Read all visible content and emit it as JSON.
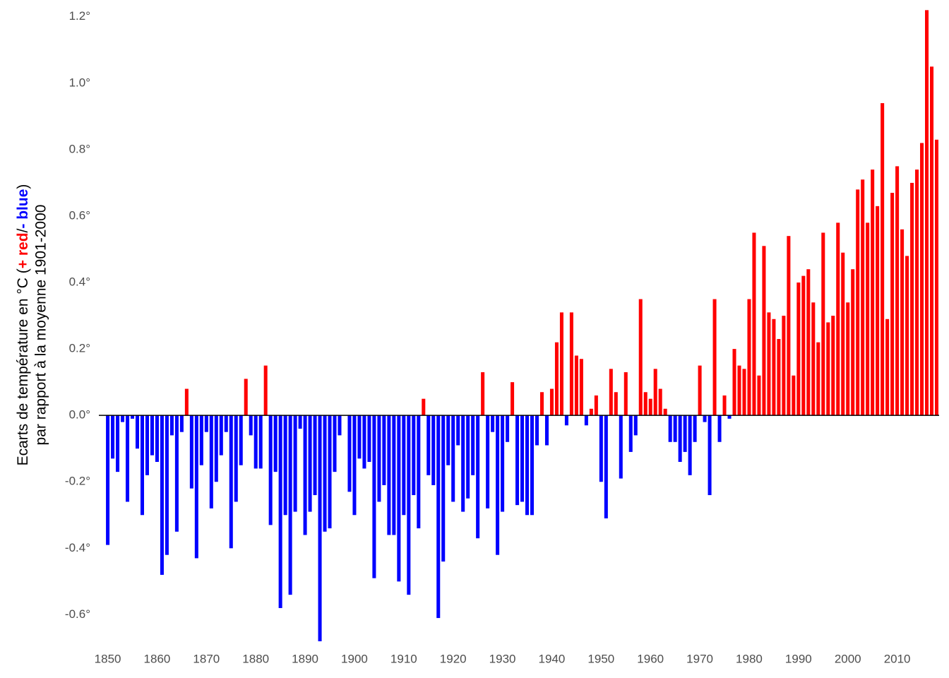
{
  "chart_data": {
    "type": "bar",
    "ylabel_line1": [
      "Ecarts de température en °C (",
      "+ red",
      "/",
      "- blue",
      ")"
    ],
    "ylabel_line2": "par rapport à la moyenne 1901-2000",
    "positive_color": "#ff0000",
    "negative_color": "#0000ff",
    "grid": true,
    "x": [
      1850,
      1851,
      1852,
      1853,
      1854,
      1855,
      1856,
      1857,
      1858,
      1859,
      1860,
      1861,
      1862,
      1863,
      1864,
      1865,
      1866,
      1867,
      1868,
      1869,
      1870,
      1871,
      1872,
      1873,
      1874,
      1875,
      1876,
      1877,
      1878,
      1879,
      1880,
      1881,
      1882,
      1883,
      1884,
      1885,
      1886,
      1887,
      1888,
      1889,
      1890,
      1891,
      1892,
      1893,
      1894,
      1895,
      1896,
      1897,
      1898,
      1899,
      1900,
      1901,
      1902,
      1903,
      1904,
      1905,
      1906,
      1907,
      1908,
      1909,
      1910,
      1911,
      1912,
      1913,
      1914,
      1915,
      1916,
      1917,
      1918,
      1919,
      1920,
      1921,
      1922,
      1923,
      1924,
      1925,
      1926,
      1927,
      1928,
      1929,
      1930,
      1931,
      1932,
      1933,
      1934,
      1935,
      1936,
      1937,
      1938,
      1939,
      1940,
      1941,
      1942,
      1943,
      1944,
      1945,
      1946,
      1947,
      1948,
      1949,
      1950,
      1951,
      1952,
      1953,
      1954,
      1955,
      1956,
      1957,
      1958,
      1959,
      1960,
      1961,
      1962,
      1963,
      1964,
      1965,
      1966,
      1967,
      1968,
      1969,
      1970,
      1971,
      1972,
      1973,
      1974,
      1975,
      1976,
      1977,
      1978,
      1979,
      1980,
      1981,
      1982,
      1983,
      1984,
      1985,
      1986,
      1987,
      1988,
      1989,
      1990,
      1991,
      1992,
      1993,
      1994,
      1995,
      1996,
      1997,
      1998,
      1999,
      2000,
      2001,
      2002,
      2003,
      2004,
      2005,
      2006,
      2007,
      2008,
      2009,
      2010,
      2011,
      2012,
      2013,
      2014,
      2015,
      2016,
      2017,
      2018
    ],
    "values": [
      -0.39,
      -0.13,
      -0.17,
      -0.02,
      -0.26,
      -0.01,
      -0.1,
      -0.3,
      -0.18,
      -0.12,
      -0.14,
      -0.48,
      -0.42,
      -0.06,
      -0.35,
      -0.05,
      0.08,
      -0.22,
      -0.43,
      -0.15,
      -0.05,
      -0.28,
      -0.2,
      -0.12,
      -0.05,
      -0.4,
      -0.26,
      -0.15,
      0.11,
      -0.06,
      -0.16,
      -0.16,
      0.15,
      -0.33,
      -0.17,
      -0.58,
      -0.3,
      -0.54,
      -0.29,
      -0.04,
      -0.36,
      -0.29,
      -0.24,
      -0.68,
      -0.35,
      -0.34,
      -0.17,
      -0.06,
      0,
      -0.23,
      -0.3,
      -0.13,
      -0.16,
      -0.14,
      -0.49,
      -0.26,
      -0.21,
      -0.36,
      -0.36,
      -0.5,
      -0.3,
      -0.54,
      -0.24,
      -0.34,
      0.05,
      -0.18,
      -0.21,
      -0.61,
      -0.44,
      -0.15,
      -0.26,
      -0.09,
      -0.29,
      -0.25,
      -0.18,
      -0.37,
      0.13,
      -0.28,
      -0.05,
      -0.42,
      -0.29,
      -0.08,
      0.1,
      -0.27,
      -0.26,
      -0.3,
      -0.3,
      -0.09,
      0.07,
      -0.09,
      0.08,
      0.22,
      0.31,
      -0.03,
      0.31,
      0.18,
      0.17,
      -0.03,
      0.02,
      0.06,
      -0.2,
      -0.31,
      0.14,
      0.07,
      -0.19,
      0.13,
      -0.11,
      -0.06,
      0.35,
      0.07,
      0.05,
      0.14,
      0.08,
      0.02,
      -0.08,
      -0.08,
      -0.14,
      -0.11,
      -0.18,
      -0.08,
      0.15,
      -0.02,
      -0.24,
      0.35,
      -0.08,
      0.06,
      -0.01,
      0.2,
      0.15,
      0.14,
      0.35,
      0.55,
      0.12,
      0.51,
      0.31,
      0.29,
      0.23,
      0.3,
      0.54,
      0.12,
      0.4,
      0.42,
      0.44,
      0.34,
      0.22,
      0.55,
      0.28,
      0.3,
      0.58,
      0.49,
      0.34,
      0.44,
      0.68,
      0.71,
      0.58,
      0.74,
      0.63,
      0.94,
      0.29,
      0.67,
      0.75,
      0.56,
      0.48,
      0.7,
      0.74,
      0.82,
      1.22,
      1.05,
      0.83
    ],
    "xlim": [
      1848.2,
      2018.5
    ],
    "xticks": [
      1850,
      1860,
      1870,
      1880,
      1890,
      1900,
      1910,
      1920,
      1930,
      1940,
      1950,
      1960,
      1970,
      1980,
      1990,
      2000,
      2010
    ],
    "ylim": [
      -0.68,
      1.225
    ],
    "yticks": [
      {
        "value": -0.6,
        "label": "-0.6°"
      },
      {
        "value": -0.4,
        "label": "-0.4°"
      },
      {
        "value": -0.2,
        "label": "-0.2°"
      },
      {
        "value": 0,
        "label": "0.0°"
      },
      {
        "value": 0.2,
        "label": "0.2°"
      },
      {
        "value": 0.4,
        "label": "0.4°"
      },
      {
        "value": 0.6,
        "label": "0.6°"
      },
      {
        "value": 0.8,
        "label": "0.8°"
      },
      {
        "value": 1.0,
        "label": "1.0°"
      },
      {
        "value": 1.2,
        "label": "1.2°"
      }
    ]
  }
}
